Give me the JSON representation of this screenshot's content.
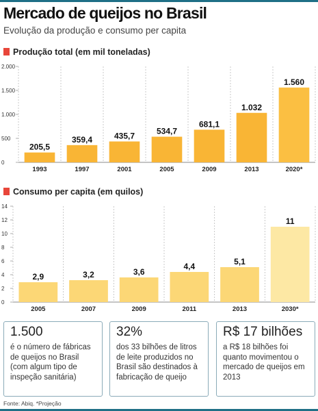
{
  "title": "Mercado de queijos no Brasil",
  "subtitle": "Evolução da produção e consumo per capita",
  "chart_data": [
    {
      "type": "bar",
      "title": "Produção total (em mil toneladas)",
      "categories": [
        "1993",
        "1997",
        "2001",
        "2005",
        "2009",
        "2013",
        "2020*"
      ],
      "values": [
        205.5,
        359.4,
        435.7,
        534.7,
        681.1,
        1032,
        1560
      ],
      "value_labels": [
        "205,5",
        "359,4",
        "435,7",
        "534,7",
        "681,1",
        "1.032",
        "1.560"
      ],
      "yticks": [
        0,
        500,
        1000,
        1500,
        2000
      ],
      "ytick_labels": [
        "0",
        "500",
        "1.000",
        "1.500",
        "2.000"
      ],
      "ylim": [
        0,
        2000
      ],
      "grid": "vertical dashed separators",
      "bar_color": "#f9b535",
      "projection_bar_color": "#fbbf42"
    },
    {
      "type": "bar",
      "title": "Consumo per capita (em quilos)",
      "categories": [
        "2005",
        "2007",
        "2009",
        "2011",
        "2013",
        "2030*"
      ],
      "values": [
        2.9,
        3.2,
        3.6,
        4.4,
        5.1,
        11
      ],
      "value_labels": [
        "2,9",
        "3,2",
        "3,6",
        "4,4",
        "5,1",
        "11"
      ],
      "yticks": [
        0,
        2,
        4,
        6,
        8,
        10,
        12,
        14
      ],
      "ytick_labels": [
        "0",
        "2",
        "4",
        "6",
        "8",
        "10",
        "12",
        "14"
      ],
      "ylim": [
        0,
        14
      ],
      "grid": "vertical dashed separators",
      "bar_color": "#fcd776",
      "projection_bar_color": "#fde8a4"
    }
  ],
  "highlights": [
    {
      "big": "1.500",
      "text": "é o número de fábricas de queijos no Brasil (com algum tipo de inspeção sanitária)"
    },
    {
      "big": "32%",
      "text": "dos 33 bilhões de litros de leite produzidos no Brasil são destinados à fabricação de queijo"
    },
    {
      "big": "R$ 17 bilhões",
      "text": "a R$ 18 bilhões foi quanto movimentou o mercado de queijos em 2013"
    }
  ],
  "source": "Fonte: Abiq. *Projeção",
  "colors": {
    "accent_line": "#1f6f86",
    "section_marker": "#e8463a",
    "box_border": "#8aaab8"
  }
}
